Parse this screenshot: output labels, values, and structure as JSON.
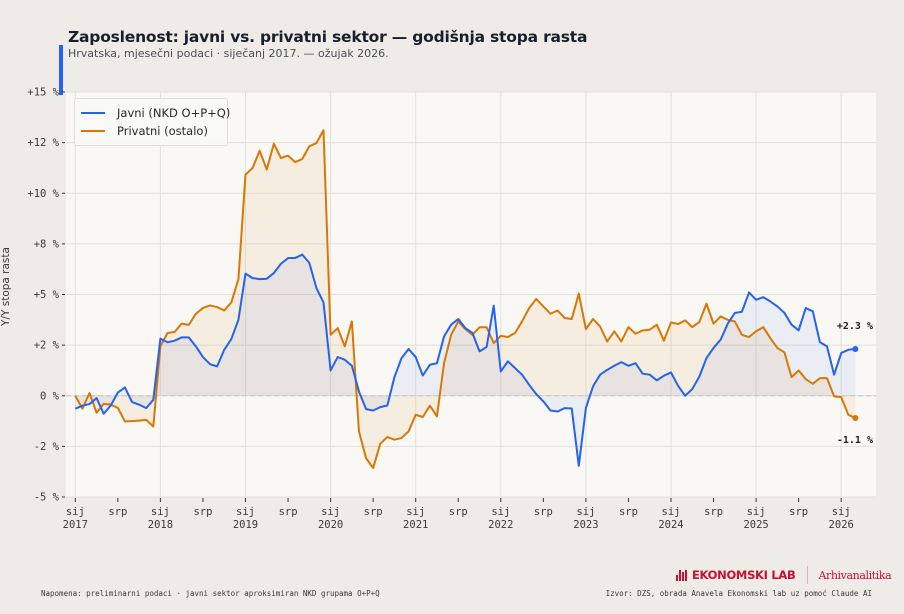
{
  "header": {
    "title": "Zaposlenost: javni vs. privatni sektor — godišnja stopa rasta",
    "subtitle": "Hrvatska, mjesečni podaci · siječanj 2017. — ožujak 2026."
  },
  "footer": {
    "note": "Napomena: preliminarni podaci · javni sektor aproksimiran NKD grupama O+P+Q",
    "source": "Izvor: DZS, obrada Anavela Ekonomski lab uz pomoć Claude AI",
    "logo_main": "EKONOMSKI LAB",
    "logo_sub": "Arhivanalitika"
  },
  "colors": {
    "public": "#2563eb",
    "private": "#d97706",
    "logo": "#c8102e"
  },
  "chart_data": {
    "type": "line",
    "title": "Zaposlenost: javni vs. privatni sektor — godišnja stopa rasta",
    "xlabel": "",
    "ylabel": "Y/Y stopa rasta",
    "ylim": [
      -5,
      15
    ],
    "grid": true,
    "legend_position": "top-left",
    "x_start": "2017-01",
    "x_end": "2026-03",
    "yticks": [
      {
        "value": 15,
        "label": "+15 %"
      },
      {
        "value": 12.5,
        "label": "+12 %"
      },
      {
        "value": 10,
        "label": "+10 %"
      },
      {
        "value": 7.5,
        "label": "+8 %"
      },
      {
        "value": 5,
        "label": "+5 %"
      },
      {
        "value": 2.5,
        "label": "+2 %"
      },
      {
        "value": 0,
        "label": "0 %"
      },
      {
        "value": -2.5,
        "label": "-2 %"
      },
      {
        "value": -5,
        "label": "-5 %"
      }
    ],
    "xticks": [
      {
        "month_index": 0,
        "label": "sij",
        "year": "2017"
      },
      {
        "month_index": 6,
        "label": "srp",
        "year": ""
      },
      {
        "month_index": 12,
        "label": "sij",
        "year": "2018"
      },
      {
        "month_index": 18,
        "label": "srp",
        "year": ""
      },
      {
        "month_index": 24,
        "label": "sij",
        "year": "2019"
      },
      {
        "month_index": 30,
        "label": "srp",
        "year": ""
      },
      {
        "month_index": 36,
        "label": "sij",
        "year": "2020"
      },
      {
        "month_index": 42,
        "label": "srp",
        "year": ""
      },
      {
        "month_index": 48,
        "label": "sij",
        "year": "2021"
      },
      {
        "month_index": 54,
        "label": "srp",
        "year": ""
      },
      {
        "month_index": 60,
        "label": "sij",
        "year": "2022"
      },
      {
        "month_index": 66,
        "label": "srp",
        "year": ""
      },
      {
        "month_index": 72,
        "label": "sij",
        "year": "2023"
      },
      {
        "month_index": 78,
        "label": "srp",
        "year": ""
      },
      {
        "month_index": 84,
        "label": "sij",
        "year": "2024"
      },
      {
        "month_index": 90,
        "label": "srp",
        "year": ""
      },
      {
        "month_index": 96,
        "label": "sij",
        "year": "2025"
      },
      {
        "month_index": 102,
        "label": "srp",
        "year": ""
      },
      {
        "month_index": 108,
        "label": "sij",
        "year": "2026"
      }
    ],
    "series": [
      {
        "name": "Javni (NKD O+P+Q)",
        "key": "public",
        "end_label": "+2.3 %",
        "values": [
          -0.64,
          -0.49,
          -0.41,
          -0.12,
          -0.89,
          -0.48,
          0.16,
          0.41,
          -0.31,
          -0.44,
          -0.61,
          -0.2,
          2.82,
          2.64,
          2.72,
          2.88,
          2.88,
          2.44,
          1.91,
          1.56,
          1.45,
          2.27,
          2.8,
          3.75,
          6.03,
          5.81,
          5.76,
          5.78,
          6.06,
          6.52,
          6.8,
          6.8,
          6.97,
          6.56,
          5.32,
          4.61,
          1.25,
          1.91,
          1.78,
          1.48,
          0.21,
          -0.66,
          -0.73,
          -0.56,
          -0.48,
          0.92,
          1.86,
          2.31,
          1.91,
          1.0,
          1.53,
          1.61,
          2.93,
          3.51,
          3.79,
          3.34,
          3.1,
          2.19,
          2.41,
          4.45,
          1.2,
          1.7,
          1.37,
          1.04,
          0.54,
          0.08,
          -0.28,
          -0.73,
          -0.78,
          -0.61,
          -0.63,
          -3.46,
          -0.61,
          0.46,
          1.04,
          1.28,
          1.48,
          1.66,
          1.48,
          1.61,
          1.09,
          1.04,
          0.76,
          0.99,
          1.15,
          0.49,
          0.0,
          0.33,
          0.95,
          1.86,
          2.36,
          2.77,
          3.56,
          4.09,
          4.15,
          5.1,
          4.74,
          4.87,
          4.66,
          4.41,
          4.09,
          3.51,
          3.23,
          4.33,
          4.17,
          2.64,
          2.44,
          1.04,
          2.11,
          2.27,
          2.31
        ]
      },
      {
        "name": "Privatni (ostalo)",
        "key": "private",
        "end_label": "-1.1 %",
        "values": [
          0.0,
          -0.64,
          0.13,
          -0.84,
          -0.4,
          -0.44,
          -0.6,
          -1.27,
          -1.25,
          -1.23,
          -1.19,
          -1.52,
          2.44,
          3.1,
          3.15,
          3.56,
          3.5,
          4.05,
          4.33,
          4.46,
          4.38,
          4.21,
          4.61,
          5.76,
          10.92,
          11.25,
          12.1,
          11.17,
          12.45,
          11.74,
          11.86,
          11.54,
          11.69,
          12.32,
          12.48,
          13.11,
          3.01,
          3.34,
          2.44,
          3.67,
          -1.76,
          -3.08,
          -3.57,
          -2.37,
          -2.04,
          -2.17,
          -2.09,
          -1.76,
          -0.94,
          -1.05,
          -0.49,
          -1.02,
          1.61,
          3.01,
          3.67,
          3.29,
          3.01,
          3.38,
          3.38,
          2.6,
          2.96,
          2.9,
          3.1,
          3.67,
          4.33,
          4.78,
          4.41,
          4.05,
          4.21,
          3.84,
          3.79,
          5.04,
          3.29,
          3.79,
          3.42,
          2.68,
          3.18,
          2.68,
          3.39,
          3.06,
          3.23,
          3.26,
          3.51,
          2.72,
          3.62,
          3.54,
          3.72,
          3.39,
          3.64,
          4.55,
          3.56,
          3.92,
          3.75,
          3.67,
          3.01,
          2.9,
          3.18,
          3.39,
          2.85,
          2.36,
          2.14,
          0.92,
          1.25,
          0.82,
          0.59,
          0.87,
          0.87,
          -0.03,
          -0.07,
          -0.94,
          -1.1
        ]
      }
    ]
  }
}
